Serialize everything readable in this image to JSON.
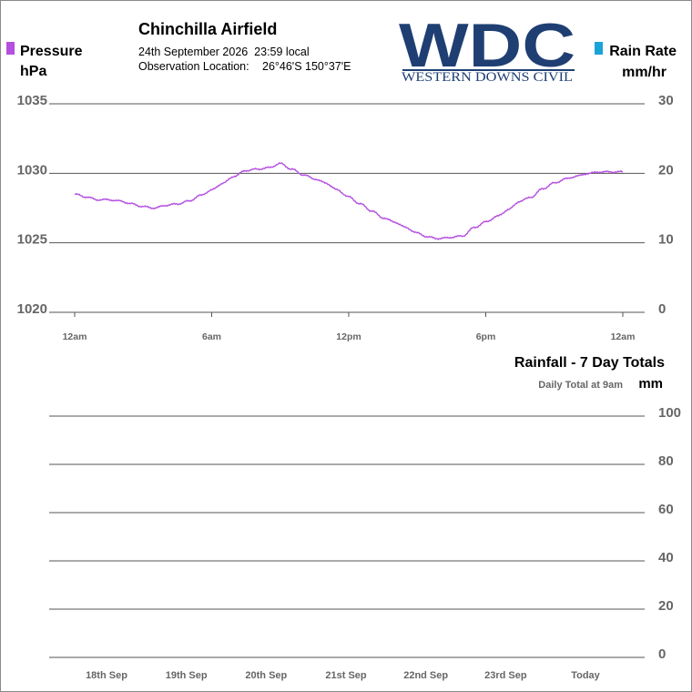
{
  "header": {
    "station": "Chinchilla Airfield",
    "datetime": "24th September 2026  23:59 local",
    "location_label": "Observation Location:",
    "location_value": "26°46'S 150°37'E"
  },
  "logo": {
    "letters": "WDC",
    "subtitle": "WESTERN DOWNS CIVIL",
    "color": "#1f3f73"
  },
  "colors": {
    "pressure": "#b44fe0",
    "rain_rate": "#1aa3d9",
    "grid": "#555555",
    "axis_text": "#666666"
  },
  "chart_data": [
    {
      "type": "line",
      "left_legend": {
        "name": "Pressure",
        "unit": "hPa"
      },
      "right_legend": {
        "name": "Rain Rate",
        "unit": "mm/hr"
      },
      "x_ticks": [
        "12am",
        "6am",
        "12pm",
        "6pm",
        "12am"
      ],
      "x_range_hours": [
        0,
        24
      ],
      "y_left_ticks": [
        "1035",
        "1030",
        "1025",
        "1020"
      ],
      "y_left_range": [
        1020,
        1035
      ],
      "y_right_ticks": [
        "30",
        "20",
        "10",
        "0"
      ],
      "y_right_range": [
        0,
        30
      ],
      "grid": true,
      "series": [
        {
          "name": "Pressure",
          "axis": "left",
          "x": [
            0,
            0.5,
            1,
            1.5,
            2,
            2.5,
            3,
            3.5,
            4,
            4.5,
            5,
            5.5,
            6,
            6.5,
            7,
            7.5,
            8,
            8.5,
            9,
            9.5,
            10,
            10.5,
            11,
            11.5,
            12,
            12.5,
            13,
            13.5,
            14,
            14.5,
            15,
            15.5,
            16,
            16.5,
            17,
            17.5,
            18,
            18.5,
            19,
            19.5,
            20,
            20.5,
            21,
            21.5,
            22,
            22.5,
            23,
            23.5,
            24
          ],
          "values": [
            1028.5,
            1028.3,
            1028.1,
            1028.1,
            1028.0,
            1027.8,
            1027.6,
            1027.5,
            1027.7,
            1027.8,
            1028.0,
            1028.4,
            1028.8,
            1029.3,
            1029.8,
            1030.2,
            1030.3,
            1030.4,
            1030.7,
            1030.3,
            1029.9,
            1029.6,
            1029.3,
            1028.8,
            1028.3,
            1027.8,
            1027.3,
            1026.8,
            1026.5,
            1026.1,
            1025.7,
            1025.4,
            1025.3,
            1025.4,
            1025.5,
            1026.1,
            1026.5,
            1026.9,
            1027.4,
            1028.0,
            1028.3,
            1028.9,
            1029.3,
            1029.6,
            1029.8,
            1030.0,
            1030.1,
            1030.1,
            1030.1
          ]
        },
        {
          "name": "Rain Rate",
          "axis": "right",
          "x": [],
          "values": []
        }
      ]
    },
    {
      "type": "bar",
      "title": "Rainfall - 7 Day Totals",
      "note": "Daily Total at 9am",
      "ylabel": "mm",
      "categories": [
        "18th Sep",
        "19th Sep",
        "20th Sep",
        "21st Sep",
        "22nd Sep",
        "23rd Sep",
        "Today"
      ],
      "values": [
        0,
        0,
        0,
        0,
        0,
        0,
        0
      ],
      "y_ticks": [
        "100",
        "80",
        "60",
        "40",
        "20",
        "0"
      ],
      "ylim": [
        0,
        100
      ],
      "grid": true
    }
  ]
}
